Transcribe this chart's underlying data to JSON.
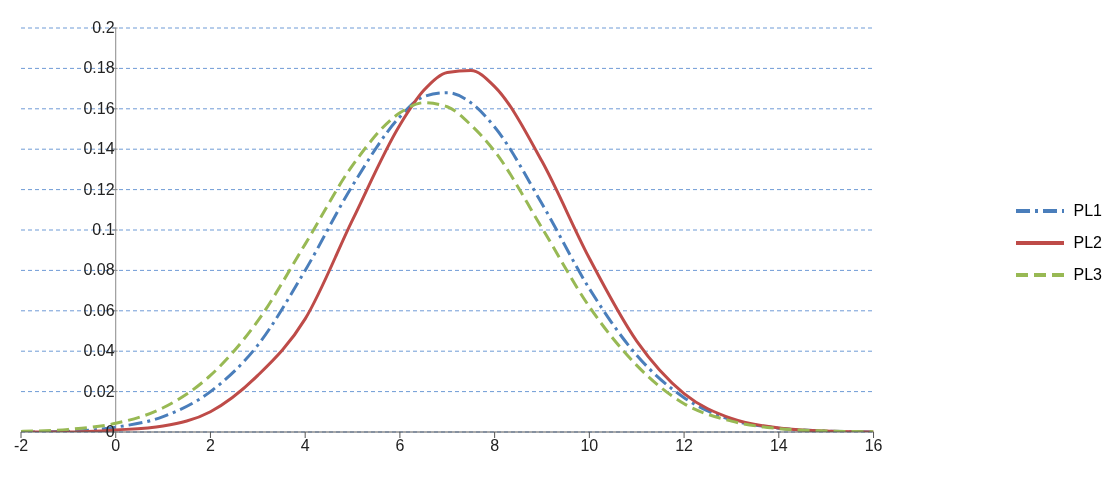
{
  "chart_data": {
    "type": "line",
    "x": [
      -2,
      -1,
      0,
      1,
      2,
      3,
      4,
      5,
      6,
      6.5,
      7,
      7.5,
      8,
      9,
      10,
      11,
      12,
      13,
      14,
      15,
      16
    ],
    "series": [
      {
        "name": "PL1",
        "color": "#4a7ebb",
        "line_style": "dashdot",
        "values": [
          0,
          0.0003,
          0.0024,
          0.0076,
          0.02,
          0.043,
          0.08,
          0.122,
          0.156,
          0.166,
          0.168,
          0.163,
          0.151,
          0.113,
          0.071,
          0.038,
          0.017,
          0.006,
          0.0019,
          0.0005,
          0
        ]
      },
      {
        "name": "PL2",
        "color": "#be4b48",
        "line_style": "solid",
        "values": [
          0,
          0,
          0.001,
          0.003,
          0.01,
          0.028,
          0.056,
          0.105,
          0.152,
          0.169,
          0.178,
          0.179,
          0.171,
          0.134,
          0.086,
          0.045,
          0.019,
          0.0067,
          0.002,
          0.0005,
          0
        ]
      },
      {
        "name": "PL3",
        "color": "#98b954",
        "line_style": "dashed",
        "values": [
          0.0003,
          0.0013,
          0.0043,
          0.012,
          0.028,
          0.055,
          0.093,
          0.132,
          0.158,
          0.163,
          0.161,
          0.152,
          0.139,
          0.101,
          0.062,
          0.033,
          0.014,
          0.0054,
          0.0017,
          0.0005,
          0.0001
        ]
      }
    ],
    "xlim": [
      -2,
      16
    ],
    "xticks": [
      -2,
      0,
      2,
      4,
      6,
      8,
      10,
      12,
      14,
      16
    ],
    "ylim": [
      0,
      0.2
    ],
    "yticks": [
      0,
      0.02,
      0.04,
      0.06,
      0.08,
      0.1,
      0.12,
      0.14,
      0.16,
      0.18,
      0.2
    ],
    "grid": "y",
    "legend": "right",
    "marker": "none"
  }
}
